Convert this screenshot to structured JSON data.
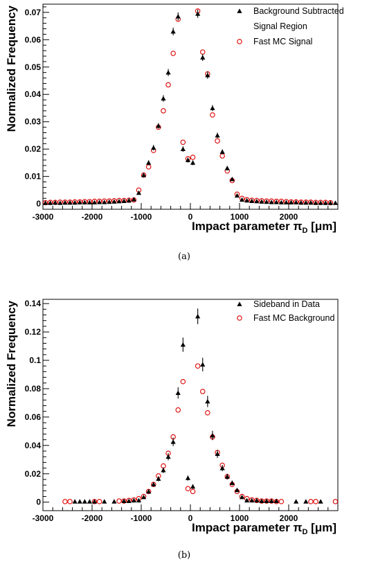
{
  "chart_data": [
    {
      "type": "scatter",
      "caption": "(a)",
      "xlabel": "Impact parameter π_D [μm]",
      "xlabel_main": "Impact parameter ",
      "xlabel_pi": "π",
      "xlabel_sub": "D",
      "xlabel_unit": " [μm]",
      "ylabel": "Normalized Frequency",
      "xlim": [
        -3000,
        3000
      ],
      "ylim": [
        -0.002,
        0.073
      ],
      "xticks": [
        -3000,
        -2000,
        -1000,
        0,
        1000,
        2000
      ],
      "xtick_labels": [
        "-3000",
        "-2000",
        "-1000",
        "0",
        "1000",
        "2000"
      ],
      "yticks": [
        0,
        0.01,
        0.02,
        0.03,
        0.04,
        0.05,
        0.06,
        0.07
      ],
      "ytick_labels": [
        "0",
        "0.01",
        "0.02",
        "0.03",
        "0.04",
        "0.05",
        "0.06",
        "0.07"
      ],
      "grid": false,
      "legend_position": "top-right",
      "series": [
        {
          "name": "Background Subtracted",
          "name_line2": "Signal Region",
          "marker": "triangle",
          "color": "#000000",
          "x": [
            -2950,
            -2850,
            -2750,
            -2650,
            -2550,
            -2450,
            -2350,
            -2250,
            -2150,
            -2050,
            -1950,
            -1850,
            -1750,
            -1650,
            -1550,
            -1450,
            -1350,
            -1250,
            -1150,
            -1050,
            -950,
            -850,
            -750,
            -650,
            -550,
            -450,
            -350,
            -250,
            -150,
            -50,
            50,
            150,
            250,
            350,
            450,
            550,
            650,
            750,
            850,
            950,
            1050,
            1150,
            1250,
            1350,
            1450,
            1550,
            1650,
            1750,
            1850,
            1950,
            2050,
            2150,
            2250,
            2350,
            2450,
            2550,
            2650,
            2750,
            2850,
            2950
          ],
          "y": [
            0.0003,
            0.0003,
            0.0004,
            0.0003,
            0.0004,
            0.0004,
            0.0004,
            0.0005,
            0.0005,
            0.0005,
            0.0005,
            0.0006,
            0.0006,
            0.0007,
            0.0008,
            0.0009,
            0.001,
            0.0012,
            0.0016,
            0.004,
            0.0105,
            0.015,
            0.0205,
            0.0285,
            0.0385,
            0.048,
            0.063,
            0.0685,
            0.02,
            0.016,
            0.015,
            0.0695,
            0.0535,
            0.047,
            0.035,
            0.025,
            0.019,
            0.013,
            0.009,
            0.003,
            0.0015,
            0.0012,
            0.001,
            0.0009,
            0.0008,
            0.0007,
            0.0006,
            0.0006,
            0.0005,
            0.0005,
            0.0005,
            0.0005,
            0.0004,
            0.0004,
            0.0004,
            0.0003,
            0.0003,
            0.0003,
            0.0003,
            0.0003
          ],
          "err": [
            0.0002,
            0.0002,
            0.0002,
            0.0002,
            0.0002,
            0.0002,
            0.0002,
            0.0002,
            0.0002,
            0.0002,
            0.0002,
            0.0002,
            0.0002,
            0.0003,
            0.0003,
            0.0003,
            0.0003,
            0.0004,
            0.0004,
            0.0006,
            0.0008,
            0.0009,
            0.001,
            0.001,
            0.0012,
            0.0013,
            0.0014,
            0.0015,
            0.001,
            0.0009,
            0.0009,
            0.0015,
            0.0013,
            0.0013,
            0.0011,
            0.001,
            0.0009,
            0.0008,
            0.0007,
            0.0005,
            0.0004,
            0.0004,
            0.0003,
            0.0003,
            0.0003,
            0.0003,
            0.0002,
            0.0002,
            0.0002,
            0.0002,
            0.0002,
            0.0002,
            0.0002,
            0.0002,
            0.0002,
            0.0002,
            0.0002,
            0.0002,
            0.0002,
            0.0002
          ]
        },
        {
          "name": "Fast MC Signal",
          "marker": "open-circle",
          "color": "#dd0000",
          "x": [
            -2950,
            -2850,
            -2750,
            -2650,
            -2550,
            -2450,
            -2350,
            -2250,
            -2150,
            -2050,
            -1950,
            -1850,
            -1750,
            -1650,
            -1550,
            -1450,
            -1350,
            -1250,
            -1150,
            -1050,
            -950,
            -850,
            -750,
            -650,
            -550,
            -450,
            -350,
            -250,
            -150,
            -50,
            50,
            150,
            250,
            350,
            450,
            550,
            650,
            750,
            850,
            950,
            1050,
            1150,
            1250,
            1350,
            1450,
            1550,
            1650,
            1750,
            1850,
            1950,
            2050,
            2150,
            2250,
            2350,
            2450,
            2550,
            2650,
            2750,
            2850
          ],
          "y": [
            0.0004,
            0.0005,
            0.0005,
            0.0006,
            0.0006,
            0.0006,
            0.0007,
            0.0007,
            0.0008,
            0.0008,
            0.0009,
            0.0009,
            0.001,
            0.001,
            0.0011,
            0.0012,
            0.0012,
            0.0013,
            0.0014,
            0.005,
            0.0105,
            0.0135,
            0.0195,
            0.028,
            0.034,
            0.0435,
            0.055,
            0.0675,
            0.0225,
            0.0165,
            0.017,
            0.0705,
            0.0555,
            0.0475,
            0.0325,
            0.023,
            0.0175,
            0.012,
            0.0085,
            0.0035,
            0.002,
            0.0015,
            0.0013,
            0.0012,
            0.0011,
            0.001,
            0.001,
            0.0009,
            0.0009,
            0.0008,
            0.0007,
            0.0007,
            0.0006,
            0.0006,
            0.0006,
            0.0005,
            0.0005,
            0.0005,
            0.0004
          ]
        }
      ]
    },
    {
      "type": "scatter",
      "caption": "(b)",
      "xlabel": "Impact parameter π_D [μm]",
      "xlabel_main": "Impact parameter ",
      "xlabel_pi": "π",
      "xlabel_sub": "D",
      "xlabel_unit": " [μm]",
      "ylabel": "Normalized Frequency",
      "xlim": [
        -3000,
        3000
      ],
      "ylim": [
        -0.006,
        0.143
      ],
      "xticks": [
        -3000,
        -2000,
        -1000,
        0,
        1000,
        2000
      ],
      "xtick_labels": [
        "-3000",
        "-2000",
        "-1000",
        "0",
        "1000",
        "2000"
      ],
      "yticks": [
        0,
        0.02,
        0.04,
        0.06,
        0.08,
        0.1,
        0.12,
        0.14
      ],
      "ytick_labels": [
        "0",
        "0.02",
        "0.04",
        "0.06",
        "0.08",
        "0.1",
        "0.12",
        "0.14"
      ],
      "grid": false,
      "legend_position": "top-right",
      "series": [
        {
          "name": "Sideband in Data",
          "marker": "triangle",
          "color": "#000000",
          "x": [
            -2350,
            -2250,
            -2150,
            -2050,
            -1950,
            -1750,
            -1550,
            -1350,
            -1250,
            -1150,
            -1050,
            -950,
            -850,
            -750,
            -650,
            -550,
            -450,
            -350,
            -250,
            -150,
            -50,
            50,
            150,
            250,
            350,
            450,
            550,
            650,
            750,
            850,
            950,
            1050,
            1150,
            1250,
            1350,
            1450,
            1550,
            1650,
            1750,
            2150,
            2350,
            2650
          ],
          "y": [
            0.0004,
            0.0004,
            0.0004,
            0.0004,
            0.0004,
            0.0004,
            0.0004,
            0.0008,
            0.0008,
            0.0012,
            0.0012,
            0.0035,
            0.0075,
            0.0125,
            0.0165,
            0.0225,
            0.032,
            0.0425,
            0.077,
            0.111,
            0.017,
            0.011,
            0.131,
            0.097,
            0.071,
            0.047,
            0.034,
            0.024,
            0.018,
            0.0135,
            0.0085,
            0.0035,
            0.0012,
            0.0012,
            0.0012,
            0.0008,
            0.0008,
            0.0008,
            0.0008,
            0.0004,
            0.0004,
            0.0004
          ],
          "err": [
            0.0003,
            0.0003,
            0.0003,
            0.0003,
            0.0003,
            0.0003,
            0.0003,
            0.0004,
            0.0004,
            0.0005,
            0.0005,
            0.0008,
            0.0012,
            0.0015,
            0.0018,
            0.002,
            0.0025,
            0.003,
            0.004,
            0.005,
            0.0018,
            0.0016,
            0.0055,
            0.0048,
            0.004,
            0.0033,
            0.0028,
            0.0022,
            0.002,
            0.0017,
            0.0013,
            0.0008,
            0.0005,
            0.0005,
            0.0005,
            0.0004,
            0.0004,
            0.0004,
            0.0004,
            0.0003,
            0.0003,
            0.0003
          ]
        },
        {
          "name": "Fast MC Background",
          "marker": "open-circle",
          "color": "#dd0000",
          "x": [
            -2550,
            -2450,
            -1950,
            -1850,
            -1450,
            -1350,
            -1250,
            -1150,
            -1050,
            -950,
            -850,
            -750,
            -650,
            -550,
            -450,
            -350,
            -250,
            -150,
            -50,
            50,
            150,
            250,
            350,
            450,
            550,
            650,
            750,
            850,
            950,
            1050,
            1150,
            1250,
            1350,
            1450,
            1550,
            1650,
            1750,
            1850,
            2450,
            2550,
            2950
          ],
          "y": [
            0.0004,
            0.0004,
            0.0004,
            0.0004,
            0.0008,
            0.0008,
            0.0012,
            0.0016,
            0.0025,
            0.004,
            0.0075,
            0.0125,
            0.0185,
            0.0255,
            0.0345,
            0.046,
            0.065,
            0.085,
            0.0095,
            0.0075,
            0.096,
            0.078,
            0.063,
            0.046,
            0.035,
            0.026,
            0.018,
            0.0125,
            0.0075,
            0.004,
            0.0025,
            0.0016,
            0.0012,
            0.0008,
            0.0008,
            0.0008,
            0.0004,
            0.0004,
            0.0004,
            0.0004,
            0.0004
          ]
        }
      ]
    }
  ]
}
